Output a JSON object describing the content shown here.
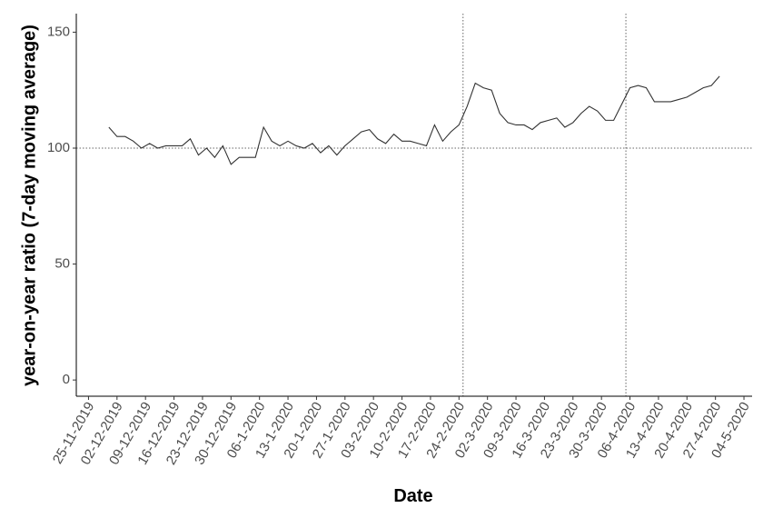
{
  "chart_data": {
    "type": "line",
    "x_label": "Date",
    "y_label": "year-on-year ratio (7-day moving average)",
    "x": [
      "2019-11-30",
      "2019-12-02",
      "2019-12-04",
      "2019-12-06",
      "2019-12-08",
      "2019-12-10",
      "2019-12-12",
      "2019-12-14",
      "2019-12-16",
      "2019-12-18",
      "2019-12-20",
      "2019-12-22",
      "2019-12-24",
      "2019-12-26",
      "2019-12-28",
      "2019-12-30",
      "2020-01-01",
      "2020-01-03",
      "2020-01-05",
      "2020-01-07",
      "2020-01-09",
      "2020-01-11",
      "2020-01-13",
      "2020-01-15",
      "2020-01-17",
      "2020-01-19",
      "2020-01-21",
      "2020-01-23",
      "2020-01-25",
      "2020-01-27",
      "2020-01-29",
      "2020-01-31",
      "2020-02-02",
      "2020-02-04",
      "2020-02-06",
      "2020-02-08",
      "2020-02-10",
      "2020-02-12",
      "2020-02-14",
      "2020-02-16",
      "2020-02-18",
      "2020-02-20",
      "2020-02-22",
      "2020-02-24",
      "2020-02-26",
      "2020-02-28",
      "2020-03-01",
      "2020-03-03",
      "2020-03-05",
      "2020-03-07",
      "2020-03-09",
      "2020-03-11",
      "2020-03-13",
      "2020-03-15",
      "2020-03-17",
      "2020-03-19",
      "2020-03-21",
      "2020-03-23",
      "2020-03-25",
      "2020-03-27",
      "2020-03-29",
      "2020-03-31",
      "2020-04-02",
      "2020-04-04",
      "2020-04-06",
      "2020-04-08",
      "2020-04-10",
      "2020-04-12",
      "2020-04-14",
      "2020-04-16",
      "2020-04-18",
      "2020-04-20",
      "2020-04-22",
      "2020-04-24",
      "2020-04-26",
      "2020-04-28"
    ],
    "values": [
      109,
      105,
      105,
      103,
      100,
      102,
      100,
      101,
      101,
      101,
      104,
      97,
      100,
      96,
      101,
      93,
      96,
      96,
      96,
      109,
      103,
      101,
      103,
      101,
      100,
      102,
      98,
      101,
      97,
      101,
      104,
      107,
      108,
      104,
      102,
      106,
      103,
      103,
      102,
      101,
      110,
      103,
      107,
      110,
      118,
      128,
      126,
      125,
      115,
      111,
      110,
      110,
      108,
      111,
      112,
      113,
      109,
      111,
      115,
      118,
      116,
      112,
      112,
      119,
      126,
      127,
      126,
      120,
      120,
      120,
      121,
      122,
      124,
      126,
      127,
      131
    ],
    "color": "#333333",
    "xlim": [
      "2019-11-22",
      "2020-05-06"
    ],
    "ylim": [
      -7,
      158
    ],
    "yticks": [
      0,
      50,
      100,
      150
    ],
    "xticks": [
      {
        "value": "2019-11-25",
        "label": "25-11-2019"
      },
      {
        "value": "2019-12-02",
        "label": "02-12-2019"
      },
      {
        "value": "2019-12-09",
        "label": "09-12-2019"
      },
      {
        "value": "2019-12-16",
        "label": "16-12-2019"
      },
      {
        "value": "2019-12-23",
        "label": "23-12-2019"
      },
      {
        "value": "2019-12-30",
        "label": "30-12-2019"
      },
      {
        "value": "2020-01-06",
        "label": "06-1-2020"
      },
      {
        "value": "2020-01-13",
        "label": "13-1-2020"
      },
      {
        "value": "2020-01-20",
        "label": "20-1-2020"
      },
      {
        "value": "2020-01-27",
        "label": "27-1-2020"
      },
      {
        "value": "2020-02-03",
        "label": "03-2-2020"
      },
      {
        "value": "2020-02-10",
        "label": "10-2-2020"
      },
      {
        "value": "2020-02-17",
        "label": "17-2-2020"
      },
      {
        "value": "2020-02-24",
        "label": "24-2-2020"
      },
      {
        "value": "2020-03-02",
        "label": "02-3-2020"
      },
      {
        "value": "2020-03-09",
        "label": "09-3-2020"
      },
      {
        "value": "2020-03-16",
        "label": "16-3-2020"
      },
      {
        "value": "2020-03-23",
        "label": "23-3-2020"
      },
      {
        "value": "2020-03-30",
        "label": "30-3-2020"
      },
      {
        "value": "2020-04-06",
        "label": "06-4-2020"
      },
      {
        "value": "2020-04-13",
        "label": "13-4-2020"
      },
      {
        "value": "2020-04-20",
        "label": "20-4-2020"
      },
      {
        "value": "2020-04-27",
        "label": "27-4-2020"
      },
      {
        "value": "2020-05-04",
        "label": "04-5-2020"
      }
    ],
    "vlines": [
      "2020-02-25",
      "2020-04-05"
    ],
    "hline": 100
  }
}
